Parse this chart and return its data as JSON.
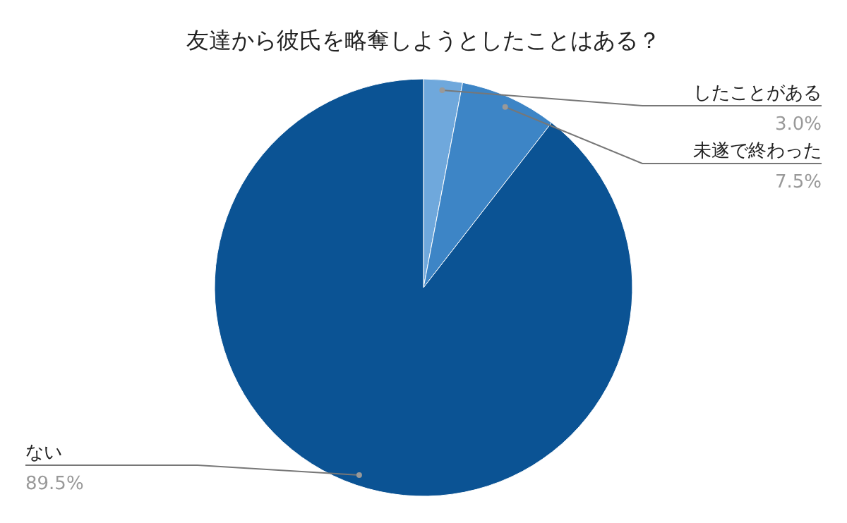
{
  "chart_data": {
    "type": "pie",
    "title": "友達から彼氏を略奪しようとしたことはある？",
    "categories": [
      "したことがある",
      "未遂で終わった",
      "ない"
    ],
    "values": [
      3.0,
      7.5,
      89.5
    ],
    "value_labels": [
      "3.0%",
      "7.5%",
      "89.5%"
    ],
    "colors": [
      "#6fa8dc",
      "#3d85c6",
      "#0b5394"
    ]
  }
}
